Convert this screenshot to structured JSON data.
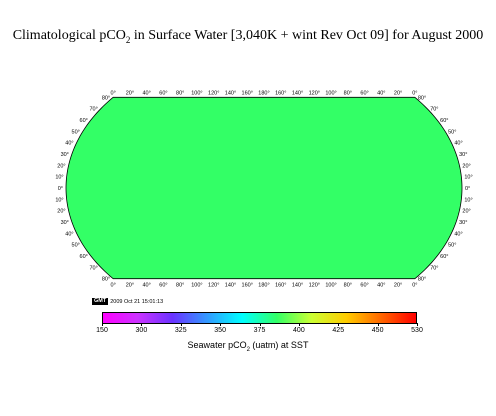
{
  "title": {
    "prefix": "Climatological pCO",
    "subscript": "2",
    "suffix": " in Surface Water [3,040K + wint Rev Oct 09] for August 2000"
  },
  "projection": "Robinson / Winkel-type world map, 0° central meridian, lon 0–360",
  "top_lon_labels": [
    "0°",
    "20°",
    "40°",
    "60°",
    "80°",
    "100°",
    "120°",
    "140°",
    "160°",
    "180°",
    "160°",
    "140°",
    "120°",
    "100°",
    "80°",
    "60°",
    "40°",
    "20°",
    "0°"
  ],
  "lat_labels": [
    "80°",
    "70°",
    "60°",
    "50°",
    "40°",
    "30°",
    "20°",
    "10°",
    "0°",
    "10°",
    "20°",
    "30°",
    "40°",
    "50°",
    "60°",
    "70°",
    "80°"
  ],
  "stamp": {
    "logo": "GMT",
    "text": "2009 Oct 21 15:01:13"
  },
  "colorbar": {
    "min": 150,
    "max": 530,
    "ticks": [
      "150",
      "300",
      "325",
      "350",
      "375",
      "400",
      "425",
      "450",
      "530"
    ],
    "colors": [
      "#ff00ff",
      "#cc33ff",
      "#6a33ff",
      "#3399ff",
      "#00ffff",
      "#33ff66",
      "#ccff33",
      "#ffcc00",
      "#ff6600",
      "#ff0000"
    ],
    "label_prefix": "Seawater  pCO",
    "label_sub": "2",
    "label_suffix": " (uatm) at SST"
  },
  "land_color": "#c8c8c8",
  "ocean_default_color": "#33ff66"
}
